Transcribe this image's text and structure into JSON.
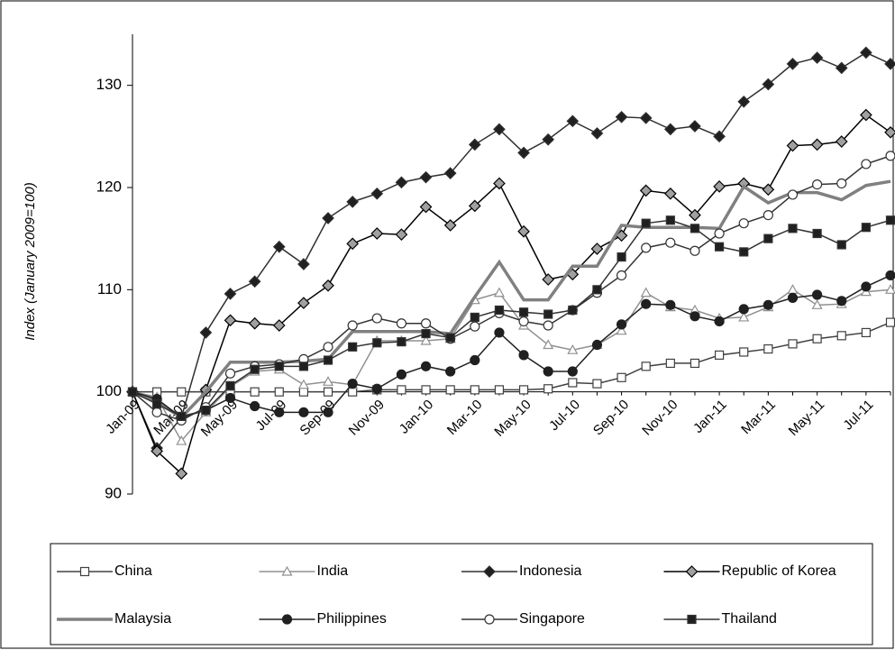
{
  "chart_data": {
    "type": "line",
    "y_label": "Index (January 2009=100)",
    "categories": [
      "Jan-09",
      null,
      "Mar-09",
      null,
      "May-09",
      null,
      "Jul-09",
      null,
      "Sep-09",
      null,
      "Nov-09",
      null,
      "Jan-10",
      null,
      "Mar-10",
      null,
      "May-10",
      null,
      "Jul-10",
      null,
      "Sep-10",
      null,
      "Nov-10",
      null,
      "Jan-11",
      null,
      "Mar-11",
      null,
      "May-11",
      null,
      "Jul-11",
      null
    ],
    "ylim": [
      90,
      135
    ],
    "yticks": [
      90,
      100,
      110,
      120,
      130
    ],
    "x_axis_at": 100,
    "grid": false,
    "legend": "bottom",
    "series": [
      {
        "name": "China",
        "color": "#404040",
        "marker": "square",
        "marker_fill": "#ffffff",
        "width": 1.5,
        "values": [
          100,
          100,
          100,
          100,
          100,
          100,
          100,
          100,
          100,
          100,
          100.2,
          100.2,
          100.2,
          100.2,
          100.2,
          100.2,
          100.2,
          100.3,
          100.9,
          100.8,
          101.4,
          102.5,
          102.8,
          102.8,
          103.6,
          103.9,
          104.2,
          104.7,
          105.2,
          105.5,
          105.8,
          106.8
        ]
      },
      {
        "name": "India",
        "color": "#909090",
        "marker": "triangle",
        "marker_fill": "#ffffff",
        "width": 1.5,
        "values": [
          100,
          99.5,
          95.2,
          98,
          100.5,
          102,
          102.2,
          100.7,
          101,
          100.7,
          105,
          105,
          105,
          105.2,
          109,
          109.7,
          106.5,
          104.6,
          104.1,
          104.6,
          106,
          109.7,
          108.3,
          108,
          107.2,
          107.3,
          108.3,
          110,
          108.5,
          108.6,
          109.8,
          110
        ]
      },
      {
        "name": "Indonesia",
        "color": "#303030",
        "marker": "diamond",
        "marker_fill": "#202020",
        "width": 1.5,
        "values": [
          100,
          94.5,
          97.5,
          105.8,
          109.6,
          110.8,
          114.2,
          112.5,
          117,
          118.6,
          119.4,
          120.5,
          121,
          121.4,
          124.2,
          125.7,
          123.4,
          124.7,
          126.5,
          125.3,
          126.9,
          126.8,
          125.7,
          126,
          125,
          128.4,
          130.1,
          132.1,
          132.7,
          131.7,
          133.2,
          132.1
        ]
      },
      {
        "name": "Republic of Korea",
        "color": "#000000",
        "marker": "diamond",
        "marker_fill": "#a0a0a0",
        "width": 1.5,
        "values": [
          100,
          94.2,
          92,
          100.2,
          107,
          106.7,
          106.5,
          108.7,
          110.4,
          114.5,
          115.5,
          115.4,
          118.1,
          116.3,
          118.2,
          120.4,
          115.7,
          111,
          111.5,
          114,
          115.3,
          119.7,
          119.4,
          117.3,
          120.1,
          120.4,
          119.8,
          124.1,
          124.2,
          124.5,
          127.1,
          125.4
        ]
      },
      {
        "name": "Malaysia",
        "color": "#808080",
        "marker": "none",
        "marker_fill": "#808080",
        "width": 3.5,
        "values": [
          100,
          99,
          97.5,
          100,
          102.9,
          102.9,
          102.9,
          103,
          103.2,
          105.9,
          105.9,
          105.9,
          105.9,
          105.7,
          109.3,
          112.7,
          109,
          109,
          112.3,
          112.3,
          116.3,
          116.1,
          116.1,
          116.1,
          116,
          120.1,
          118.5,
          119.5,
          119.5,
          118.8,
          120.2,
          120.6
        ]
      },
      {
        "name": "Philippines",
        "color": "#202020",
        "marker": "circle",
        "marker_fill": "#202020",
        "width": 1.5,
        "values": [
          100,
          99.3,
          97.5,
          98.2,
          99.4,
          98.6,
          98,
          98,
          98,
          100.8,
          100.3,
          101.7,
          102.5,
          102,
          103.1,
          105.8,
          103.6,
          102,
          102,
          104.6,
          106.6,
          108.6,
          108.5,
          107.4,
          106.9,
          108.1,
          108.5,
          109.2,
          109.5,
          108.9,
          110.3,
          111.4
        ]
      },
      {
        "name": "Singapore",
        "color": "#333333",
        "marker": "circle",
        "marker_fill": "#ffffff",
        "width": 1.5,
        "values": [
          100,
          98,
          97.2,
          98.5,
          101.8,
          102.5,
          102.7,
          103.2,
          104.4,
          106.5,
          107.2,
          106.7,
          106.7,
          105.2,
          106.4,
          107.7,
          106.9,
          106.5,
          108,
          109.7,
          111.4,
          114.1,
          114.6,
          113.8,
          115.5,
          116.5,
          117.3,
          119.3,
          120.3,
          120.4,
          122.3,
          123.1
        ]
      },
      {
        "name": "Thailand",
        "color": "#333333",
        "marker": "square",
        "marker_fill": "#202020",
        "width": 1.5,
        "values": [
          100,
          98.8,
          97.6,
          98.2,
          100.6,
          102.2,
          102.5,
          102.5,
          103.1,
          104.4,
          104.8,
          104.9,
          105.7,
          105.3,
          107.3,
          108,
          107.8,
          107.6,
          108,
          110,
          113.2,
          116.5,
          116.8,
          116,
          114.2,
          113.7,
          115,
          116,
          115.5,
          114.4,
          116.1,
          116.8
        ]
      }
    ]
  }
}
